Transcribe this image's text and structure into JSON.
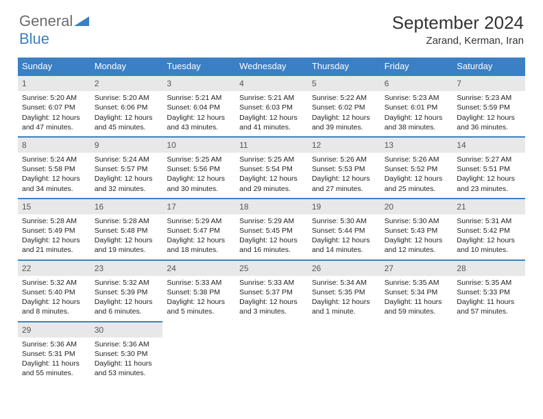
{
  "brand": {
    "part1": "General",
    "part2": "Blue"
  },
  "title": "September 2024",
  "subtitle": "Zarand, Kerman, Iran",
  "colors": {
    "accent": "#3b7fc4",
    "dayhead_bg": "#3b7fc4",
    "daynum_bg": "#e8e8e8",
    "text": "#222222",
    "bg": "#ffffff"
  },
  "weekdays": [
    "Sunday",
    "Monday",
    "Tuesday",
    "Wednesday",
    "Thursday",
    "Friday",
    "Saturday"
  ],
  "days": [
    {
      "n": "1",
      "sunrise": "5:20 AM",
      "sunset": "6:07 PM",
      "day_h": 12,
      "day_m": 47
    },
    {
      "n": "2",
      "sunrise": "5:20 AM",
      "sunset": "6:06 PM",
      "day_h": 12,
      "day_m": 45
    },
    {
      "n": "3",
      "sunrise": "5:21 AM",
      "sunset": "6:04 PM",
      "day_h": 12,
      "day_m": 43
    },
    {
      "n": "4",
      "sunrise": "5:21 AM",
      "sunset": "6:03 PM",
      "day_h": 12,
      "day_m": 41
    },
    {
      "n": "5",
      "sunrise": "5:22 AM",
      "sunset": "6:02 PM",
      "day_h": 12,
      "day_m": 39
    },
    {
      "n": "6",
      "sunrise": "5:23 AM",
      "sunset": "6:01 PM",
      "day_h": 12,
      "day_m": 38
    },
    {
      "n": "7",
      "sunrise": "5:23 AM",
      "sunset": "5:59 PM",
      "day_h": 12,
      "day_m": 36
    },
    {
      "n": "8",
      "sunrise": "5:24 AM",
      "sunset": "5:58 PM",
      "day_h": 12,
      "day_m": 34
    },
    {
      "n": "9",
      "sunrise": "5:24 AM",
      "sunset": "5:57 PM",
      "day_h": 12,
      "day_m": 32
    },
    {
      "n": "10",
      "sunrise": "5:25 AM",
      "sunset": "5:56 PM",
      "day_h": 12,
      "day_m": 30
    },
    {
      "n": "11",
      "sunrise": "5:25 AM",
      "sunset": "5:54 PM",
      "day_h": 12,
      "day_m": 29
    },
    {
      "n": "12",
      "sunrise": "5:26 AM",
      "sunset": "5:53 PM",
      "day_h": 12,
      "day_m": 27
    },
    {
      "n": "13",
      "sunrise": "5:26 AM",
      "sunset": "5:52 PM",
      "day_h": 12,
      "day_m": 25
    },
    {
      "n": "14",
      "sunrise": "5:27 AM",
      "sunset": "5:51 PM",
      "day_h": 12,
      "day_m": 23
    },
    {
      "n": "15",
      "sunrise": "5:28 AM",
      "sunset": "5:49 PM",
      "day_h": 12,
      "day_m": 21
    },
    {
      "n": "16",
      "sunrise": "5:28 AM",
      "sunset": "5:48 PM",
      "day_h": 12,
      "day_m": 19
    },
    {
      "n": "17",
      "sunrise": "5:29 AM",
      "sunset": "5:47 PM",
      "day_h": 12,
      "day_m": 18
    },
    {
      "n": "18",
      "sunrise": "5:29 AM",
      "sunset": "5:45 PM",
      "day_h": 12,
      "day_m": 16
    },
    {
      "n": "19",
      "sunrise": "5:30 AM",
      "sunset": "5:44 PM",
      "day_h": 12,
      "day_m": 14
    },
    {
      "n": "20",
      "sunrise": "5:30 AM",
      "sunset": "5:43 PM",
      "day_h": 12,
      "day_m": 12
    },
    {
      "n": "21",
      "sunrise": "5:31 AM",
      "sunset": "5:42 PM",
      "day_h": 12,
      "day_m": 10
    },
    {
      "n": "22",
      "sunrise": "5:32 AM",
      "sunset": "5:40 PM",
      "day_h": 12,
      "day_m": 8
    },
    {
      "n": "23",
      "sunrise": "5:32 AM",
      "sunset": "5:39 PM",
      "day_h": 12,
      "day_m": 6
    },
    {
      "n": "24",
      "sunrise": "5:33 AM",
      "sunset": "5:38 PM",
      "day_h": 12,
      "day_m": 5
    },
    {
      "n": "25",
      "sunrise": "5:33 AM",
      "sunset": "5:37 PM",
      "day_h": 12,
      "day_m": 3
    },
    {
      "n": "26",
      "sunrise": "5:34 AM",
      "sunset": "5:35 PM",
      "day_h": 12,
      "day_m": 1
    },
    {
      "n": "27",
      "sunrise": "5:35 AM",
      "sunset": "5:34 PM",
      "day_h": 11,
      "day_m": 59
    },
    {
      "n": "28",
      "sunrise": "5:35 AM",
      "sunset": "5:33 PM",
      "day_h": 11,
      "day_m": 57
    },
    {
      "n": "29",
      "sunrise": "5:36 AM",
      "sunset": "5:31 PM",
      "day_h": 11,
      "day_m": 55
    },
    {
      "n": "30",
      "sunrise": "5:36 AM",
      "sunset": "5:30 PM",
      "day_h": 11,
      "day_m": 53
    }
  ],
  "labels": {
    "sunrise": "Sunrise:",
    "sunset": "Sunset:",
    "daylight": "Daylight:",
    "hours": "hours",
    "and": "and",
    "minutes": "minutes.",
    "minute": "minute."
  },
  "trailing_empty": 5
}
